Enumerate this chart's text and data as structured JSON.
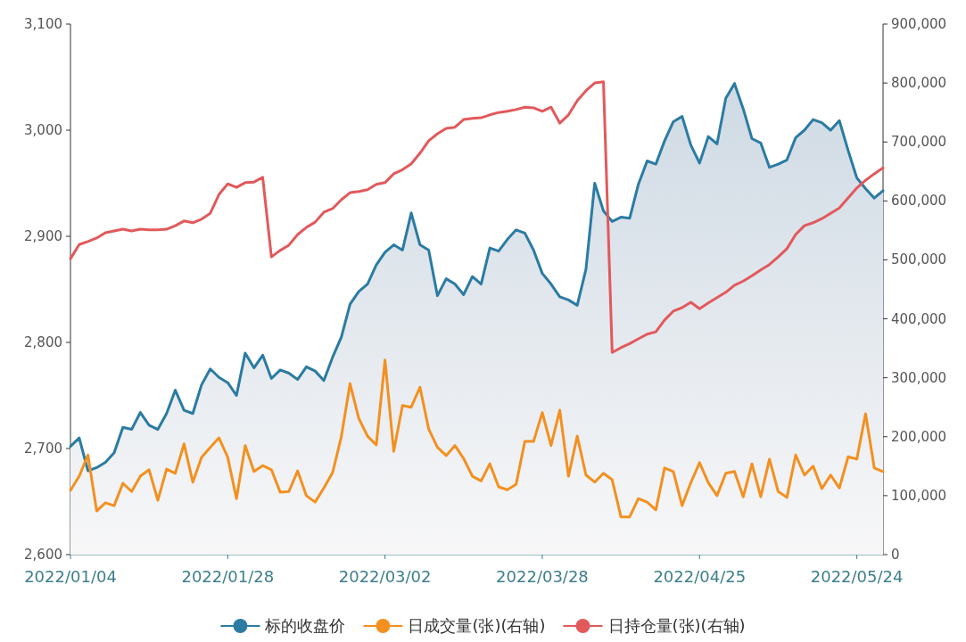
{
  "chart_data": {
    "type": "line",
    "categories": [
      "2022/01/04",
      null,
      null,
      null,
      null,
      null,
      null,
      null,
      null,
      null,
      null,
      null,
      null,
      null,
      null,
      null,
      null,
      null,
      "2022/01/28",
      null,
      null,
      null,
      null,
      null,
      null,
      null,
      null,
      null,
      null,
      null,
      null,
      null,
      null,
      null,
      null,
      null,
      "2022/03/02",
      null,
      null,
      null,
      null,
      null,
      null,
      null,
      null,
      null,
      null,
      null,
      null,
      null,
      null,
      null,
      null,
      null,
      "2022/03/28",
      null,
      null,
      null,
      null,
      null,
      null,
      null,
      null,
      null,
      null,
      null,
      null,
      null,
      null,
      null,
      null,
      null,
      "2022/04/25",
      null,
      null,
      null,
      null,
      null,
      null,
      null,
      null,
      null,
      null,
      null,
      null,
      null,
      null,
      null,
      null,
      null,
      "2022/05/24",
      null,
      null,
      null
    ],
    "series": [
      {
        "name": "标的收盘价",
        "type": "area",
        "color": "#2b7ba3",
        "values": [
          2702,
          2710,
          2679,
          2682,
          2687,
          2696,
          2720,
          2718,
          2734,
          2722,
          2718,
          2733,
          2755,
          2736,
          2733,
          2760,
          2775,
          2767,
          2762,
          2750,
          2790,
          2776,
          2788,
          2766,
          2774,
          2771,
          2765,
          2777,
          2773,
          2764,
          2786,
          2805,
          2836,
          2848,
          2855,
          2873,
          2885,
          2892,
          2887,
          2922,
          2892,
          2887,
          2844,
          2860,
          2855,
          2845,
          2862,
          2855,
          2889,
          2886,
          2897,
          2906,
          2903,
          2887,
          2865,
          2855,
          2843,
          2840,
          2835,
          2869,
          2950,
          2924,
          2914,
          2918,
          2917,
          2949,
          2971,
          2968,
          2990,
          3008,
          3013,
          2986,
          2969,
          2994,
          2987,
          3030,
          3044,
          3020,
          2992,
          2988,
          2965,
          2968,
          2972,
          2993,
          3000,
          3010,
          3007,
          3000,
          3009,
          2981,
          2955,
          2945,
          2936,
          2943
        ]
      },
      {
        "name": "日成交量(张)(右轴)",
        "color": "#f39020",
        "axis": "y2",
        "values": [
          109000,
          133000,
          169000,
          74000,
          88000,
          83000,
          121000,
          107000,
          133000,
          144000,
          92000,
          145000,
          138000,
          188000,
          123000,
          165000,
          182000,
          198000,
          165000,
          95000,
          185000,
          141000,
          151000,
          144000,
          106000,
          107000,
          142000,
          100000,
          89000,
          113000,
          139000,
          200000,
          290000,
          231000,
          201000,
          186000,
          330000,
          175000,
          253000,
          250000,
          284000,
          213000,
          182000,
          168000,
          185000,
          163000,
          133000,
          125000,
          154000,
          115000,
          110000,
          119000,
          192000,
          192000,
          241000,
          185000,
          245000,
          133000,
          201000,
          135000,
          123000,
          138000,
          127000,
          64000,
          64000,
          95000,
          89000,
          76000,
          147000,
          141000,
          83000,
          122000,
          156000,
          122000,
          100000,
          138000,
          141000,
          98000,
          154000,
          98000,
          162000,
          107000,
          97000,
          169000,
          135000,
          150000,
          112000,
          135000,
          113000,
          166000,
          162000,
          239000,
          147000,
          141000
        ]
      },
      {
        "name": "日持仓量(张)(右轴)",
        "color": "#e2595c",
        "axis": "y2",
        "values": [
          502000,
          526000,
          531000,
          537000,
          546000,
          549000,
          552000,
          549000,
          552000,
          551000,
          551000,
          552000,
          558000,
          566000,
          563000,
          569000,
          579000,
          611000,
          629000,
          623000,
          631000,
          632000,
          640000,
          505000,
          516000,
          525000,
          543000,
          555000,
          564000,
          581000,
          587000,
          602000,
          614000,
          616000,
          619000,
          628000,
          631000,
          646000,
          653000,
          663000,
          681000,
          702000,
          714000,
          723000,
          725000,
          738000,
          740000,
          741000,
          746000,
          750000,
          752000,
          755000,
          759000,
          758000,
          752000,
          759000,
          732000,
          746000,
          770000,
          787000,
          800000,
          802000,
          343000,
          351000,
          358000,
          366000,
          374000,
          378000,
          398000,
          413000,
          419000,
          428000,
          417000,
          427000,
          436000,
          445000,
          457000,
          464000,
          473000,
          483000,
          492000,
          505000,
          519000,
          543000,
          558000,
          563000,
          570000,
          579000,
          588000,
          605000,
          622000,
          635000,
          646000,
          656000
        ]
      }
    ],
    "ylim": [
      2600,
      3100
    ],
    "yticks": [
      {
        "value": 2600,
        "label": "2,600"
      },
      {
        "value": 2700,
        "label": "2,700"
      },
      {
        "value": 2800,
        "label": "2,800"
      },
      {
        "value": 2900,
        "label": "2,900"
      },
      {
        "value": 3000,
        "label": "3,000"
      },
      {
        "value": 3100,
        "label": "3,100"
      }
    ],
    "y2lim": [
      0,
      900000
    ],
    "y2ticks": [
      0,
      {
        "value": 100000,
        "label": "100,000"
      },
      {
        "value": 200000,
        "label": "200,000"
      },
      {
        "value": 300000,
        "label": "300,000"
      },
      {
        "value": 400000,
        "label": "400,000"
      },
      {
        "value": 500000,
        "label": "500,000"
      },
      {
        "value": 600000,
        "label": "600,000"
      },
      {
        "value": 700000,
        "label": "700,000"
      },
      {
        "value": 800000,
        "label": "800,000"
      },
      {
        "value": 900000,
        "label": "900,000"
      }
    ],
    "legend": "bottom"
  }
}
